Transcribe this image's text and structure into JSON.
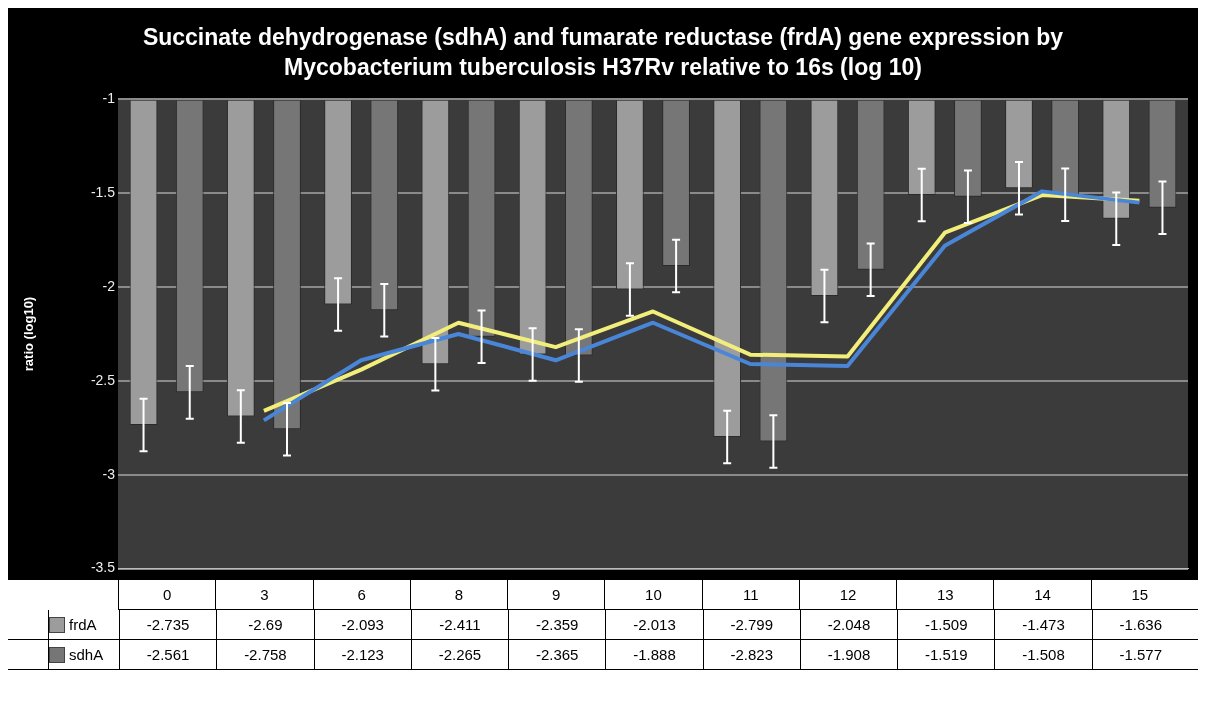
{
  "chart_data": {
    "type": "bar",
    "title": "Succinate dehydrogenase (sdhA) and fumarate reductase (frdA) gene expression by Mycobacterium tuberculosis H37Rv relative to 16s (log 10)",
    "ylabel": "ratio (log10)",
    "categories": [
      "0",
      "3",
      "6",
      "8",
      "9",
      "10",
      "11",
      "12",
      "13",
      "14",
      "15"
    ],
    "series": [
      {
        "name": "frdA",
        "color": "#9c9c9c",
        "values": [
          -2.735,
          -2.69,
          -2.093,
          -2.411,
          -2.359,
          -2.013,
          -2.799,
          -2.048,
          -1.509,
          -1.473,
          -1.636
        ],
        "value_labels": [
          "-2.735",
          "-2.69",
          "-2.093",
          "-2.411",
          "-2.359",
          "-2.013",
          "-2.799",
          "-2.048",
          "-1.509",
          "-1.473",
          "-1.636"
        ],
        "errors": [
          0.14,
          0.14,
          0.14,
          0.14,
          0.14,
          0.14,
          0.14,
          0.14,
          0.14,
          0.14,
          0.14
        ]
      },
      {
        "name": "sdhA",
        "color": "#767676",
        "values": [
          -2.561,
          -2.758,
          -2.123,
          -2.265,
          -2.365,
          -1.888,
          -2.823,
          -1.908,
          -1.519,
          -1.508,
          -1.577
        ],
        "value_labels": [
          "-2.561",
          "-2.758",
          "-2.123",
          "-2.265",
          "-2.365",
          "-1.888",
          "-2.823",
          "-1.908",
          "-1.519",
          "-1.508",
          "-1.577"
        ],
        "errors": [
          0.14,
          0.14,
          0.14,
          0.14,
          0.14,
          0.14,
          0.14,
          0.14,
          0.14,
          0.14,
          0.14
        ]
      },
      {
        "type": "line",
        "color": "#4a86d8",
        "x": [
          "3",
          "6",
          "8",
          "9",
          "10",
          "11",
          "12",
          "13",
          "14",
          "15"
        ],
        "values": [
          -2.71,
          -2.39,
          -2.25,
          -2.39,
          -2.19,
          -2.41,
          -2.42,
          -1.78,
          -1.49,
          -1.55
        ]
      },
      {
        "type": "line",
        "color": "#f2ee7c",
        "x": [
          "3",
          "6",
          "8",
          "9",
          "10",
          "11",
          "12",
          "13",
          "14",
          "15"
        ],
        "values": [
          -2.66,
          -2.44,
          -2.19,
          -2.32,
          -2.13,
          -2.36,
          -2.37,
          -1.71,
          -1.51,
          -1.54
        ]
      }
    ],
    "ylim": [
      -3.5,
      -1
    ],
    "yticks": [
      -3.5,
      -3,
      -2.5,
      -2,
      -1.5,
      -1
    ],
    "grid": "y",
    "legend": "bottom left",
    "marker": "none",
    "line_style": "solid"
  }
}
